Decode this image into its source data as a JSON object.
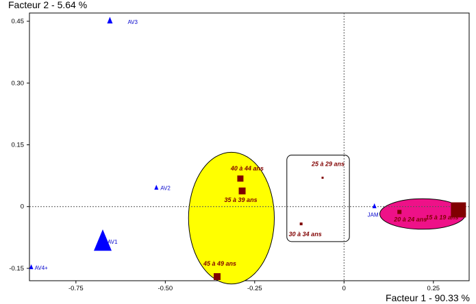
{
  "chart_data": {
    "type": "scatter",
    "x_axis_title": "Facteur 1  -  90.33 %",
    "y_axis_title": "Facteur 2  -  5.64 %",
    "xlim": [
      -0.88,
      0.35
    ],
    "ylim": [
      -0.18,
      0.47
    ],
    "x_ticks": [
      -0.75,
      -0.5,
      -0.25,
      0,
      0.25
    ],
    "x_tick_labels": [
      "-0.75",
      "-0.50",
      "-0.25",
      "0",
      "0.25"
    ],
    "y_ticks": [
      0.45,
      0.3,
      0.15,
      0,
      -0.15
    ],
    "y_tick_labels": [
      "0.45",
      "0.30",
      "0.15",
      "0",
      "-0.15"
    ],
    "reference_lines": {
      "x": 0,
      "y": 0,
      "style": "dotted"
    },
    "series": [
      {
        "marker": "triangle",
        "color": "#0000ff",
        "points": [
          {
            "label": "AV3",
            "x": -0.655,
            "y": 0.45,
            "size": 4
          },
          {
            "label": "AV2",
            "x": -0.525,
            "y": 0.045,
            "size": 3
          },
          {
            "label": "AV1",
            "x": -0.675,
            "y": -0.09,
            "size": 13
          },
          {
            "label": "AV4+",
            "x": -0.875,
            "y": -0.148,
            "size": 3
          },
          {
            "label": "JAM",
            "x": 0.085,
            "y": 0.0,
            "size": 3
          }
        ]
      },
      {
        "marker": "square",
        "color": "#800000",
        "points": [
          {
            "label": "40 à 44 ans",
            "x": -0.29,
            "y": 0.068,
            "size": 4.5
          },
          {
            "label": "35 à 39 ans",
            "x": -0.285,
            "y": 0.038,
            "size": 5
          },
          {
            "label": "25 à 29 ans",
            "x": -0.06,
            "y": 0.07,
            "size": 1.5
          },
          {
            "label": "30 à 34 ans",
            "x": -0.12,
            "y": -0.042,
            "size": 2
          },
          {
            "label": "45 à 49 ans",
            "x": -0.355,
            "y": -0.17,
            "size": 5
          },
          {
            "label": "20 à 24 ans",
            "x": 0.155,
            "y": -0.013,
            "size": 3
          },
          {
            "label": "15 à 19 ans",
            "x": 0.32,
            "y": -0.008,
            "size": 11
          }
        ]
      }
    ],
    "groups": [
      {
        "shape": "ellipse",
        "fill": "#ffff00",
        "stroke": "#000000",
        "cx": -0.315,
        "cy": -0.028,
        "rx": 0.12,
        "ry": 0.16
      },
      {
        "shape": "rounded-rect",
        "fill": "none",
        "stroke": "#000000",
        "x0": -0.16,
        "x1": 0.015,
        "y0": -0.085,
        "y1": 0.125
      },
      {
        "shape": "ellipse",
        "fill": "#ee1188",
        "stroke": "#000000",
        "cx": 0.22,
        "cy": -0.018,
        "rx": 0.12,
        "ry": 0.037
      }
    ]
  }
}
